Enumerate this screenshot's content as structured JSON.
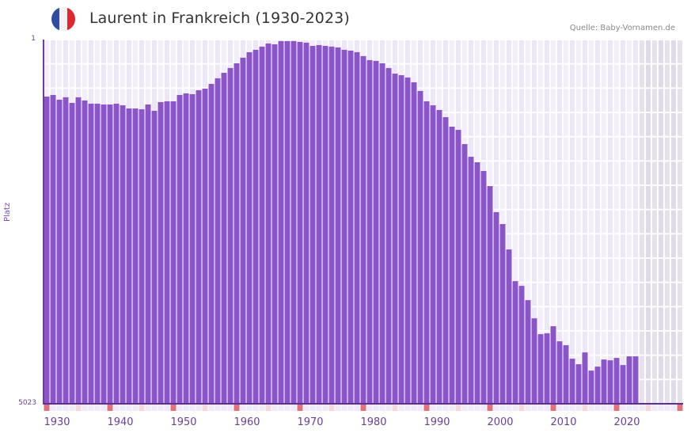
{
  "header": {
    "title": "Laurent in Frankreich (1930-2023)",
    "source": "Quelle: Baby-Vornamen.de",
    "flag": {
      "icon": "france-flag-icon",
      "colors": [
        "#2f4ea3",
        "#f2f2f2",
        "#e0262f"
      ]
    }
  },
  "axes": {
    "y_top_label": "1",
    "y_bottom_label": "5023",
    "y_title": "Platz",
    "x_tick_labels": [
      "1930",
      "1940",
      "1950",
      "1960",
      "1970",
      "1980",
      "1990",
      "2000",
      "2010",
      "2020"
    ]
  },
  "colors": {
    "bar": "#8b55c8",
    "grid_a": "#f3eefb",
    "grid_b": "#ece6f7",
    "future_a": "#e6e1ef",
    "future_b": "#e0dbeb",
    "marker_decade": "#e2707c",
    "marker_half": "#f5d7df",
    "marker_plain": "#efe9f9",
    "axis": "#6b3fa0"
  },
  "chart_data": {
    "type": "bar",
    "title": "Laurent in Frankreich (1930-2023)",
    "xlabel": "",
    "ylabel": "Platz",
    "y_inverted": true,
    "ylim": [
      1,
      5023
    ],
    "xlim": [
      1930,
      2030
    ],
    "grid": true,
    "x": [
      1930,
      1931,
      1932,
      1933,
      1934,
      1935,
      1936,
      1937,
      1938,
      1939,
      1940,
      1941,
      1942,
      1943,
      1944,
      1945,
      1946,
      1947,
      1948,
      1949,
      1950,
      1951,
      1952,
      1953,
      1954,
      1955,
      1956,
      1957,
      1958,
      1959,
      1960,
      1961,
      1962,
      1963,
      1964,
      1965,
      1966,
      1967,
      1968,
      1969,
      1970,
      1971,
      1972,
      1973,
      1974,
      1975,
      1976,
      1977,
      1978,
      1979,
      1980,
      1981,
      1982,
      1983,
      1984,
      1985,
      1986,
      1987,
      1988,
      1989,
      1990,
      1991,
      1992,
      1993,
      1994,
      1995,
      1996,
      1997,
      1998,
      1999,
      2000,
      2001,
      2002,
      2003,
      2004,
      2005,
      2006,
      2007,
      2008,
      2009,
      2010,
      2011,
      2012,
      2013,
      2014,
      2015,
      2016,
      2017,
      2018,
      2019,
      2020,
      2021,
      2022,
      2023
    ],
    "values": [
      787,
      765,
      830,
      797,
      874,
      797,
      841,
      885,
      885,
      896,
      896,
      885,
      907,
      951,
      951,
      962,
      896,
      983,
      863,
      852,
      852,
      765,
      743,
      754,
      699,
      677,
      612,
      535,
      459,
      393,
      328,
      251,
      175,
      142,
      98,
      55,
      66,
      22,
      22,
      22,
      33,
      44,
      88,
      77,
      88,
      98,
      109,
      142,
      153,
      175,
      229,
      284,
      295,
      328,
      393,
      470,
      492,
      524,
      590,
      710,
      852,
      907,
      972,
      1071,
      1202,
      1246,
      1442,
      1617,
      1693,
      1813,
      2021,
      2381,
      2545,
      2895,
      3332,
      3397,
      3594,
      3845,
      4063,
      4052,
      3954,
      4162,
      4216,
      4402,
      4478,
      4315,
      4566,
      4511,
      4413,
      4424,
      4391,
      4489,
      4369,
      4369
    ]
  }
}
